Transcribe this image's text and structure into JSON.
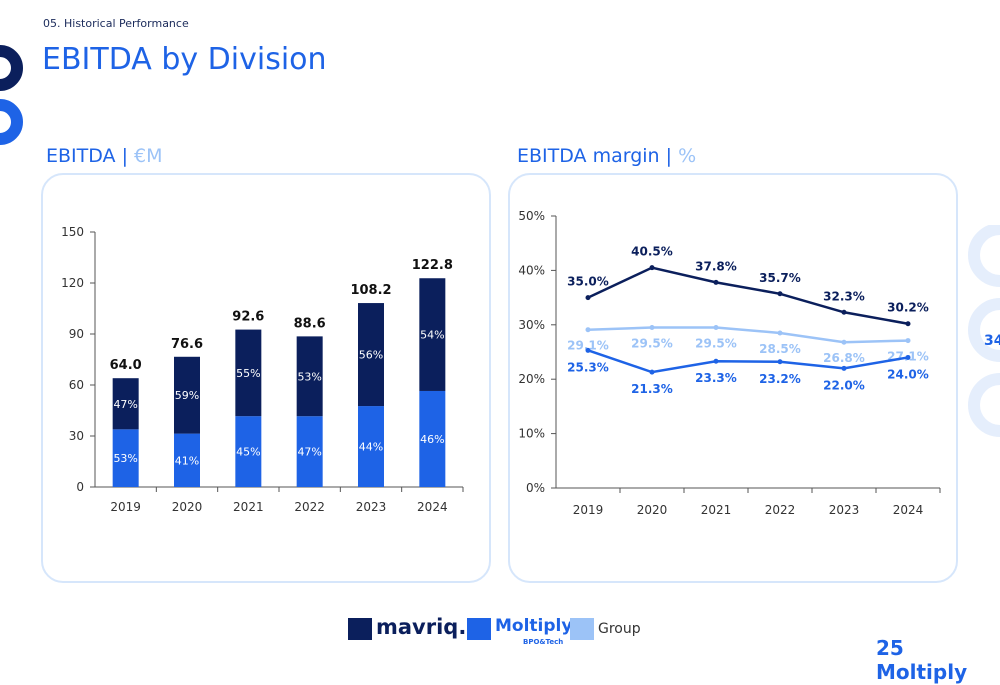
{
  "header": {
    "section": "05. Historical Performance",
    "title": "EBITDA by Division"
  },
  "panels": {
    "left": {
      "title": "EBITDA",
      "sep": " | ",
      "unit": "€M"
    },
    "right": {
      "title": "EBITDA margin",
      "sep": " | ",
      "unit": "%"
    }
  },
  "decor": {
    "right_edge_text": "34"
  },
  "legend": {
    "items": [
      {
        "label": "mavriq.",
        "color": "#0b1f5c"
      },
      {
        "label": "Moltiply",
        "sub": "BPO&Tech",
        "color": "#1e63e6"
      },
      {
        "label": "Group",
        "color": "#9cc3f7"
      }
    ]
  },
  "footer": {
    "logo": "25 Moltiply"
  },
  "colors": {
    "mavriq": "#0b1f5c",
    "moltiply": "#1e63e6",
    "group": "#9cc3f7",
    "panel_border": "#d6e6fb"
  },
  "chart_data": [
    {
      "type": "bar",
      "stacked": true,
      "categories": [
        "2019",
        "2020",
        "2021",
        "2022",
        "2023",
        "2024"
      ],
      "totals": [
        64.0,
        76.6,
        92.6,
        88.6,
        108.2,
        122.8
      ],
      "total_labels": [
        "64.0",
        "76.6",
        "92.6",
        "88.6",
        "108.2",
        "122.8"
      ],
      "series": [
        {
          "name": "Moltiply",
          "share_pct": [
            53,
            41,
            45,
            47,
            44,
            46
          ],
          "labels": [
            "53%",
            "41%",
            "45%",
            "47%",
            "44%",
            "46%"
          ]
        },
        {
          "name": "mavriq.",
          "share_pct": [
            47,
            59,
            55,
            53,
            56,
            54
          ],
          "labels": [
            "47%",
            "59%",
            "55%",
            "53%",
            "56%",
            "54%"
          ]
        }
      ],
      "ylim": [
        0,
        150
      ],
      "yticks": [
        "0",
        "30",
        "60",
        "90",
        "120",
        "150"
      ],
      "grid": false
    },
    {
      "type": "line",
      "categories": [
        "2019",
        "2020",
        "2021",
        "2022",
        "2023",
        "2024"
      ],
      "series": [
        {
          "name": "mavriq.",
          "values": [
            35.0,
            40.5,
            37.8,
            35.7,
            32.3,
            30.2
          ],
          "labels": [
            "35.0%",
            "40.5%",
            "37.8%",
            "35.7%",
            "32.3%",
            "30.2%"
          ]
        },
        {
          "name": "Group",
          "values": [
            29.1,
            29.5,
            29.5,
            28.5,
            26.8,
            27.1
          ],
          "labels": [
            "29.1%",
            "29.5%",
            "29.5%",
            "28.5%",
            "26.8%",
            "27.1%"
          ]
        },
        {
          "name": "Moltiply",
          "values": [
            25.3,
            21.3,
            23.3,
            23.2,
            22.0,
            24.0
          ],
          "labels": [
            "25.3%",
            "21.3%",
            "23.3%",
            "23.2%",
            "22.0%",
            "24.0%"
          ]
        }
      ],
      "ylim": [
        0,
        50
      ],
      "yticks": [
        "0%",
        "10%",
        "20%",
        "30%",
        "40%",
        "50%"
      ],
      "grid": false
    }
  ]
}
